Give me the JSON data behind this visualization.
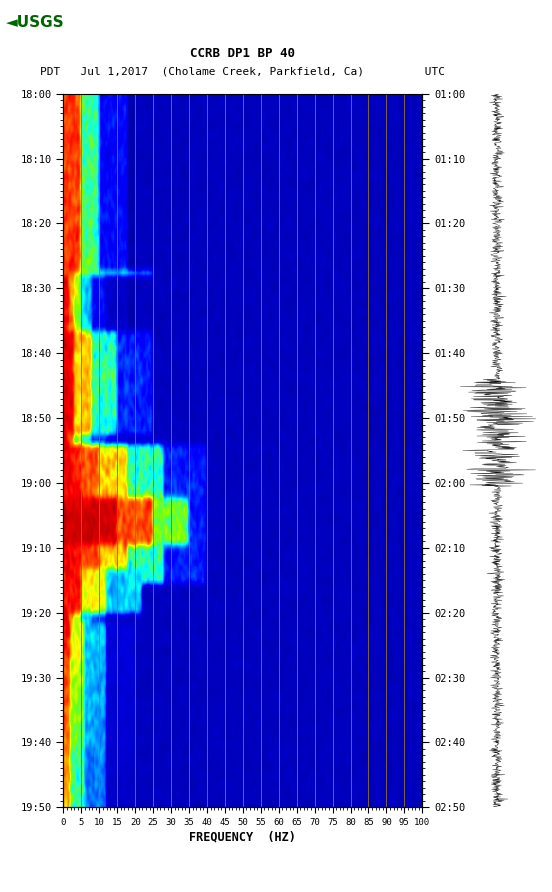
{
  "title_line1": "CCRB DP1 BP 40",
  "title_line2": "PDT   Jul 1,2017  (Cholame Creek, Parkfield, Ca)         UTC",
  "xlabel": "FREQUENCY  (HZ)",
  "freq_min": 0,
  "freq_max": 100,
  "freq_ticks": [
    0,
    5,
    10,
    15,
    20,
    25,
    30,
    35,
    40,
    45,
    50,
    55,
    60,
    65,
    70,
    75,
    80,
    85,
    90,
    95,
    100
  ],
  "time_ticks_pdt": [
    "18:00",
    "18:10",
    "18:20",
    "18:30",
    "18:40",
    "18:50",
    "19:00",
    "19:10",
    "19:20",
    "19:30",
    "19:40",
    "19:50"
  ],
  "time_ticks_utc": [
    "01:00",
    "01:10",
    "01:20",
    "01:30",
    "01:40",
    "01:50",
    "02:00",
    "02:10",
    "02:20",
    "02:30",
    "02:40",
    "02:50"
  ],
  "bg_color": "#ffffff",
  "grid_color": "#8B7030",
  "logo_color": "#006400",
  "n_time": 240,
  "n_freq": 300,
  "seed": 12345,
  "cmap_colors": [
    [
      0.0,
      "#00008B"
    ],
    [
      0.1,
      "#0000CD"
    ],
    [
      0.2,
      "#0000FF"
    ],
    [
      0.32,
      "#007FFF"
    ],
    [
      0.44,
      "#00FFFF"
    ],
    [
      0.56,
      "#7FFF00"
    ],
    [
      0.65,
      "#FFFF00"
    ],
    [
      0.76,
      "#FF7F00"
    ],
    [
      0.88,
      "#FF0000"
    ],
    [
      1.0,
      "#8B0000"
    ]
  ]
}
